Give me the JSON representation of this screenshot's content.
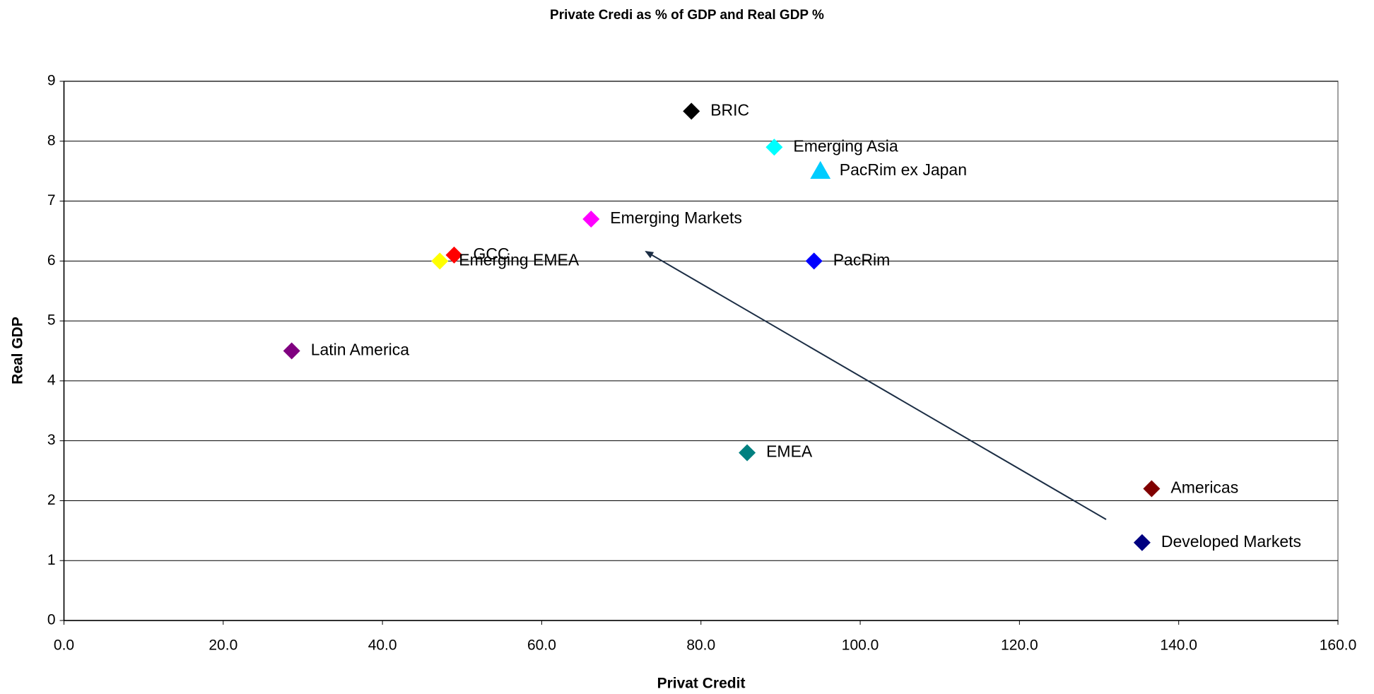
{
  "chart_data": {
    "type": "scatter",
    "title": "Private Credi as % of GDP and Real GDP %",
    "x_label": "Privat Credit",
    "y_label": "Real GDP",
    "xlim": [
      0,
      160
    ],
    "xticks": [
      {
        "value": 0,
        "label": "0.0"
      },
      {
        "value": 20,
        "label": "20.0"
      },
      {
        "value": 40,
        "label": "40.0"
      },
      {
        "value": 60,
        "label": "60.0"
      },
      {
        "value": 80,
        "label": "80.0"
      },
      {
        "value": 100,
        "label": "100.0"
      },
      {
        "value": 120,
        "label": "120.0"
      },
      {
        "value": 140,
        "label": "140.0"
      },
      {
        "value": 160,
        "label": "160.0"
      }
    ],
    "ylim": [
      0,
      9
    ],
    "yticks": [
      0,
      1,
      2,
      3,
      4,
      5,
      6,
      7,
      8,
      9
    ],
    "grid": true,
    "series": [
      {
        "name": "BRIC",
        "color": "#000000",
        "marker": "diamond",
        "x": [
          78.8
        ],
        "values": [
          8.5
        ]
      },
      {
        "name": "Emerging Asia",
        "color": "#00ffff",
        "marker": "diamond",
        "x": [
          89.2
        ],
        "values": [
          7.9
        ]
      },
      {
        "name": "PacRim ex Japan",
        "color": "#00ccff",
        "marker": "triangle",
        "x": [
          95.0
        ],
        "values": [
          7.5
        ]
      },
      {
        "name": "Emerging Markets",
        "color": "#ff00ff",
        "marker": "diamond",
        "x": [
          66.2
        ],
        "values": [
          6.7
        ]
      },
      {
        "name": "GCC",
        "color": "#ff0000",
        "marker": "diamond",
        "x": [
          49.0
        ],
        "values": [
          6.1
        ]
      },
      {
        "name": "Emerging EMEA",
        "color": "#ffff00",
        "marker": "diamond",
        "x": [
          47.2
        ],
        "values": [
          6.0
        ]
      },
      {
        "name": "PacRim",
        "color": "#0000ff",
        "marker": "diamond",
        "x": [
          94.2
        ],
        "values": [
          6.0
        ]
      },
      {
        "name": "Latin America",
        "color": "#800080",
        "marker": "diamond",
        "x": [
          28.6
        ],
        "values": [
          4.5
        ]
      },
      {
        "name": "EMEA",
        "color": "#008080",
        "marker": "diamond",
        "x": [
          85.8
        ],
        "values": [
          2.8
        ]
      },
      {
        "name": "Americas",
        "color": "#800000",
        "marker": "diamond",
        "x": [
          136.6
        ],
        "values": [
          2.2
        ]
      },
      {
        "name": "Developed Markets",
        "color": "#000080",
        "marker": "diamond",
        "x": [
          135.4
        ],
        "values": [
          1.3
        ]
      }
    ]
  }
}
